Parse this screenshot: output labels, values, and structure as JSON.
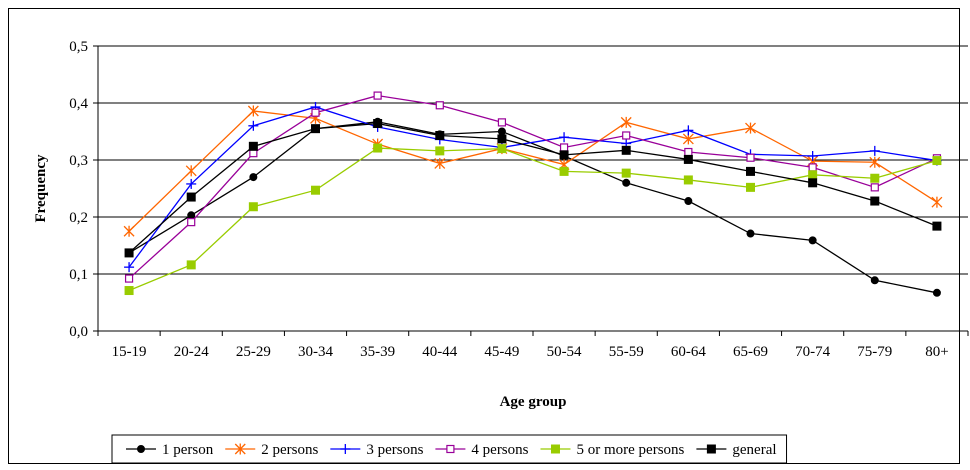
{
  "chart_data": {
    "type": "line",
    "title": "",
    "xlabel": "Age group",
    "ylabel": "Frequency",
    "ylim": [
      0.0,
      0.5
    ],
    "yticks": [
      "0,0",
      "0,1",
      "0,2",
      "0,3",
      "0,4",
      "0,5"
    ],
    "grid": true,
    "legend_position": "bottom",
    "categories": [
      "15-19",
      "20-24",
      "25-29",
      "30-34",
      "35-39",
      "40-44",
      "45-49",
      "50-54",
      "55-59",
      "60-64",
      "65-69",
      "70-74",
      "75-79",
      "80+"
    ],
    "series": [
      {
        "name": "1 person",
        "color": "#000000",
        "marker": "circle",
        "values": [
          0.137,
          0.203,
          0.27,
          0.355,
          0.367,
          0.345,
          0.35,
          0.307,
          0.26,
          0.228,
          0.171,
          0.159,
          0.089,
          0.067
        ]
      },
      {
        "name": "2 persons",
        "color": "#ff6600",
        "marker": "asterisk",
        "values": [
          0.175,
          0.281,
          0.386,
          0.373,
          0.328,
          0.294,
          0.32,
          0.292,
          0.366,
          0.337,
          0.356,
          0.298,
          0.296,
          0.226
        ]
      },
      {
        "name": "3 persons",
        "color": "#0000ff",
        "marker": "plus",
        "values": [
          0.112,
          0.258,
          0.36,
          0.393,
          0.358,
          0.336,
          0.322,
          0.34,
          0.329,
          0.352,
          0.31,
          0.307,
          0.316,
          0.299
        ]
      },
      {
        "name": "4 persons",
        "color": "#990099",
        "marker": "square-open",
        "values": [
          0.092,
          0.191,
          0.312,
          0.383,
          0.413,
          0.396,
          0.366,
          0.322,
          0.343,
          0.314,
          0.304,
          0.287,
          0.252,
          0.303
        ]
      },
      {
        "name": "5 or more persons",
        "color": "#99cc00",
        "marker": "square",
        "values": [
          0.071,
          0.116,
          0.218,
          0.247,
          0.321,
          0.316,
          0.32,
          0.28,
          0.277,
          0.265,
          0.252,
          0.274,
          0.268,
          0.299
        ]
      },
      {
        "name": "general",
        "color": "#000000",
        "marker": "square",
        "values": [
          0.137,
          0.235,
          0.324,
          0.355,
          0.364,
          0.343,
          0.337,
          0.309,
          0.317,
          0.301,
          0.28,
          0.26,
          0.228,
          0.184
        ]
      }
    ]
  }
}
